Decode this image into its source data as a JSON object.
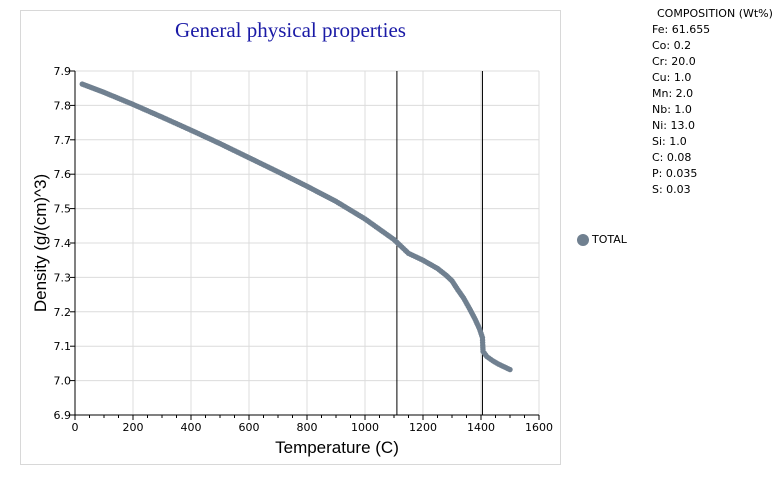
{
  "chart_data": {
    "type": "scatter",
    "title": "General physical properties",
    "xlabel": "Temperature (C)",
    "ylabel": "Density (g/(cm)^3)",
    "xlim": [
      0,
      1600
    ],
    "ylim": [
      6.9,
      7.9
    ],
    "xticks": [
      "0",
      "200",
      "400",
      "600",
      "800",
      "1000",
      "1200",
      "1400",
      "1600"
    ],
    "yticks": [
      "6.9",
      "7.0",
      "7.1",
      "7.2",
      "7.3",
      "7.4",
      "7.5",
      "7.6",
      "7.7",
      "7.8",
      "7.9"
    ],
    "grid": true,
    "legend_position": "right",
    "vertical_lines": [
      1110,
      1405
    ],
    "series": [
      {
        "name": "TOTAL",
        "color": "#708090",
        "points": [
          [
            25,
            7.862
          ],
          [
            100,
            7.838
          ],
          [
            200,
            7.803
          ],
          [
            300,
            7.766
          ],
          [
            400,
            7.728
          ],
          [
            500,
            7.689
          ],
          [
            600,
            7.648
          ],
          [
            700,
            7.607
          ],
          [
            800,
            7.565
          ],
          [
            900,
            7.521
          ],
          [
            1000,
            7.47
          ],
          [
            1100,
            7.41
          ],
          [
            1110,
            7.402
          ],
          [
            1150,
            7.37
          ],
          [
            1200,
            7.35
          ],
          [
            1250,
            7.326
          ],
          [
            1280,
            7.306
          ],
          [
            1300,
            7.29
          ],
          [
            1320,
            7.264
          ],
          [
            1340,
            7.24
          ],
          [
            1360,
            7.21
          ],
          [
            1380,
            7.178
          ],
          [
            1395,
            7.15
          ],
          [
            1405,
            7.125
          ],
          [
            1406,
            7.103
          ],
          [
            1407,
            7.085
          ],
          [
            1420,
            7.07
          ],
          [
            1440,
            7.058
          ],
          [
            1460,
            7.048
          ],
          [
            1480,
            7.04
          ],
          [
            1500,
            7.032
          ]
        ]
      }
    ]
  },
  "composition": {
    "title": "COMPOSITION (Wt%)",
    "items": [
      "Fe: 61.655",
      "Co: 0.2",
      "Cr: 20.0",
      "Cu: 1.0",
      "Mn: 2.0",
      "Nb: 1.0",
      "Ni: 13.0",
      "Si: 1.0",
      "C: 0.08",
      "P: 0.035",
      "S: 0.03"
    ]
  }
}
